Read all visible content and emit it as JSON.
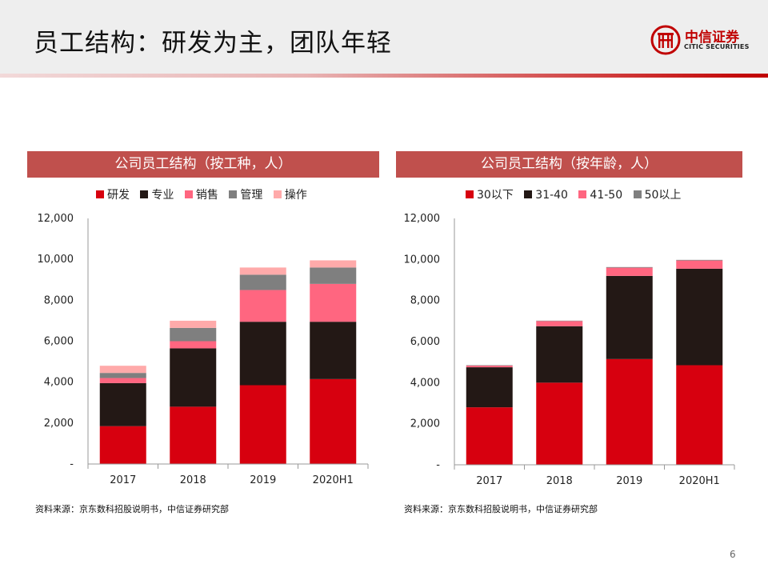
{
  "header": {
    "title": "员工结构：研发为主，团队年轻"
  },
  "logo": {
    "name_cn": "中信证券",
    "name_en": "CITIC SECURITIES"
  },
  "page_number": "6",
  "colors": {
    "red": "#d7000f",
    "black": "#231815",
    "pink": "#ff6680",
    "gray": "#7f7f7f",
    "light_pink": "#ffaaaa",
    "title_bar": "#c0504d"
  },
  "chart_data": [
    {
      "type": "bar",
      "stacked": true,
      "title": "公司员工结构（按工种，人）",
      "categories": [
        "2017",
        "2018",
        "2019",
        "2020H1"
      ],
      "y_ticks": [
        "-",
        "2,000",
        "4,000",
        "6,000",
        "8,000",
        "10,000",
        "12,000"
      ],
      "ylim": [
        0,
        12000
      ],
      "legend_position": "top",
      "series": [
        {
          "name": "研发",
          "color": "#d7000f",
          "values": [
            1850,
            2800,
            3850,
            4150
          ]
        },
        {
          "name": "专业",
          "color": "#231815",
          "values": [
            2100,
            2850,
            3100,
            2800
          ]
        },
        {
          "name": "销售",
          "color": "#ff6680",
          "values": [
            250,
            350,
            1550,
            1850
          ]
        },
        {
          "name": "管理",
          "color": "#7f7f7f",
          "values": [
            250,
            650,
            750,
            800
          ]
        },
        {
          "name": "操作",
          "color": "#ffaaaa",
          "values": [
            350,
            350,
            350,
            350
          ]
        }
      ],
      "source": "资料来源：京东数科招股说明书，中信证券研究部"
    },
    {
      "type": "bar",
      "stacked": true,
      "title": "公司员工结构（按年龄，人）",
      "categories": [
        "2017",
        "2018",
        "2019",
        "2020H1"
      ],
      "y_ticks": [
        "-",
        "2,000",
        "4,000",
        "6,000",
        "8,000",
        "10,000",
        "12,000"
      ],
      "ylim": [
        0,
        12000
      ],
      "legend_position": "top",
      "series": [
        {
          "name": "30以下",
          "color": "#d7000f",
          "values": [
            2800,
            4000,
            5150,
            4850
          ]
        },
        {
          "name": "31-40",
          "color": "#231815",
          "values": [
            1950,
            2750,
            4050,
            4700
          ]
        },
        {
          "name": "41-50",
          "color": "#ff6680",
          "values": [
            80,
            250,
            400,
            400
          ]
        },
        {
          "name": "50以上",
          "color": "#7f7f7f",
          "values": [
            20,
            20,
            30,
            30
          ]
        }
      ],
      "source": "资料来源：京东数科招股说明书，中信证券研究部"
    }
  ]
}
